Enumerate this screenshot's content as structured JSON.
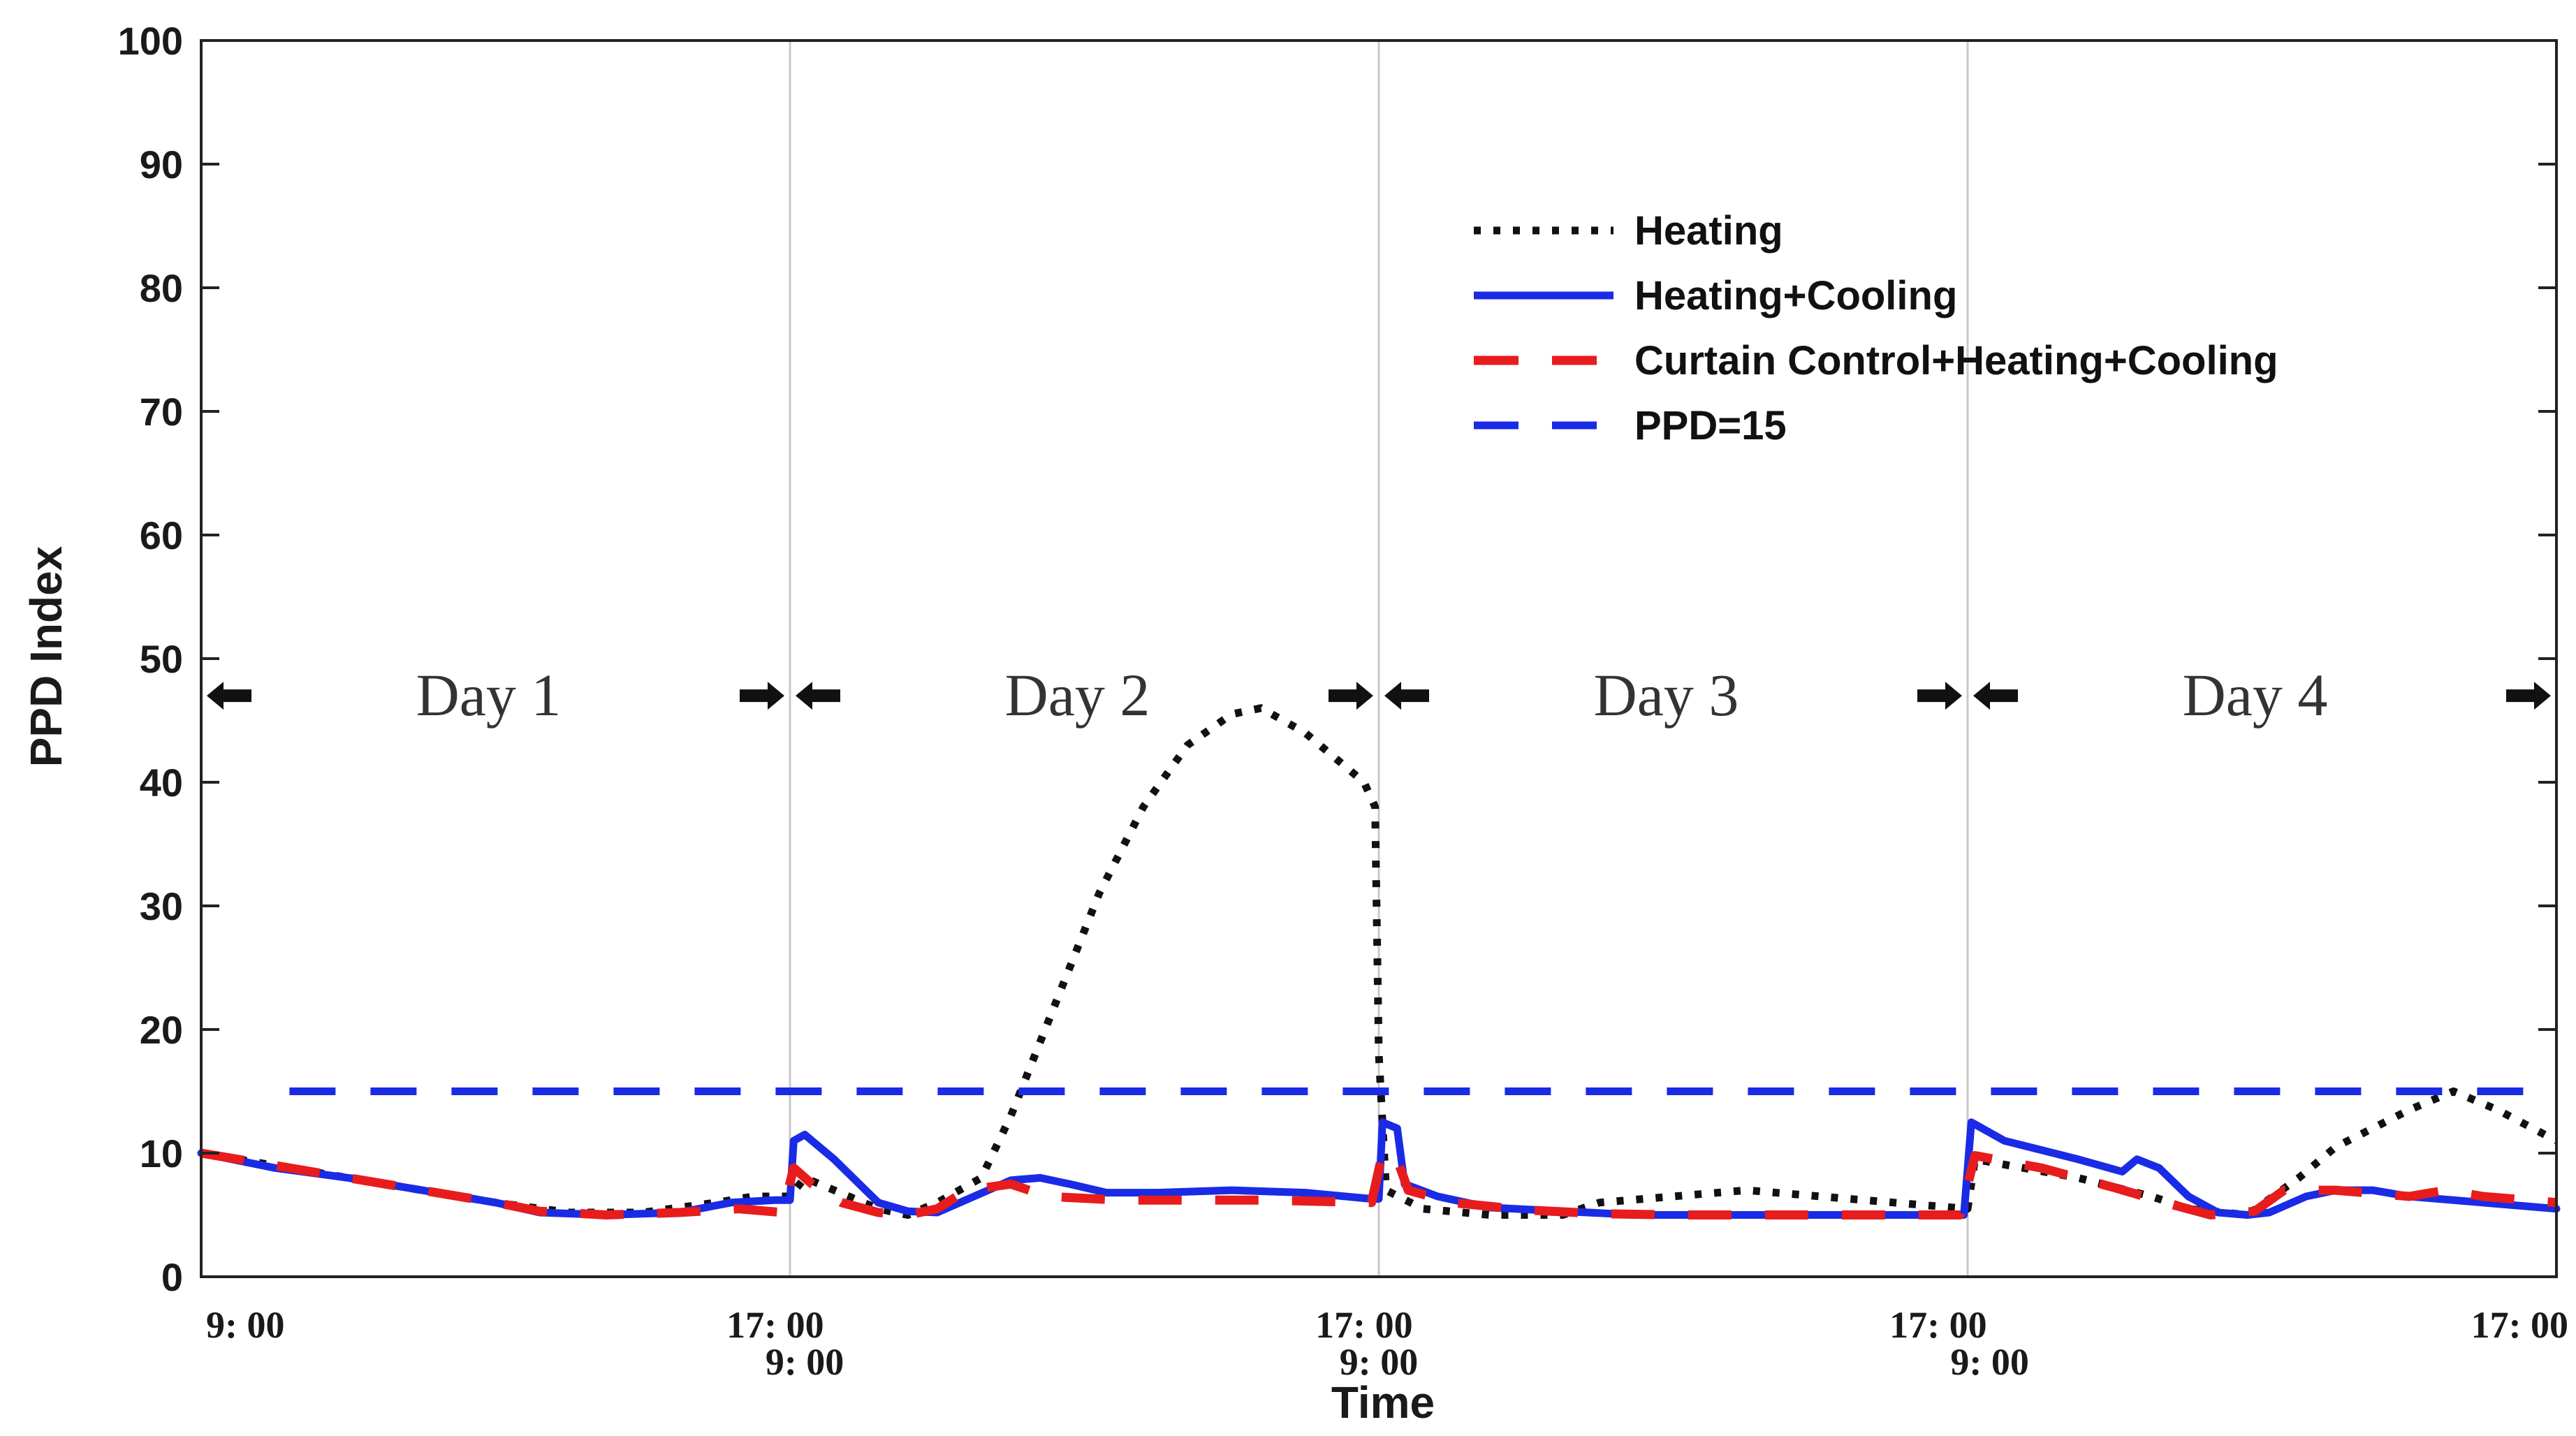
{
  "chart_data": {
    "type": "line",
    "title": "",
    "xlabel": "Time",
    "ylabel": "PPD Index",
    "ylim": [
      0,
      100
    ],
    "xlim": [
      0,
      32
    ],
    "grid": false,
    "legend_position": "top-right",
    "yticks": [
      0,
      10,
      20,
      30,
      40,
      50,
      60,
      70,
      80,
      90,
      100
    ],
    "x_tick_labels": [
      {
        "x": 0.6,
        "row": 1,
        "label": "9: 00"
      },
      {
        "x": 7.8,
        "row": 1,
        "label": "17: 00"
      },
      {
        "x": 8.2,
        "row": 2,
        "label": "9: 00"
      },
      {
        "x": 15.8,
        "row": 1,
        "label": "17: 00"
      },
      {
        "x": 16.0,
        "row": 2,
        "label": "9: 00"
      },
      {
        "x": 23.6,
        "row": 1,
        "label": "17: 00"
      },
      {
        "x": 24.3,
        "row": 2,
        "label": "9: 00"
      },
      {
        "x": 31.5,
        "row": 1,
        "label": "17: 00"
      }
    ],
    "day_separators": [
      8,
      16,
      24
    ],
    "days": [
      {
        "label": "Day 1",
        "start": 0,
        "end": 8
      },
      {
        "label": "Day 2",
        "start": 8,
        "end": 16
      },
      {
        "label": "Day 3",
        "start": 16,
        "end": 24
      },
      {
        "label": "Day 4",
        "start": 24,
        "end": 32
      }
    ],
    "day_marker_y": 47,
    "day_label_y": 47,
    "series": [
      {
        "name": "Heating",
        "color": "#111111",
        "style": "dotted",
        "points": [
          [
            0,
            10
          ],
          [
            1,
            9
          ],
          [
            2,
            8
          ],
          [
            3,
            7
          ],
          [
            4,
            6
          ],
          [
            5,
            5.2
          ],
          [
            6,
            5.2
          ],
          [
            7,
            6
          ],
          [
            7.5,
            6.5
          ],
          [
            8,
            6.5
          ],
          [
            8.2,
            8
          ],
          [
            8.6,
            7
          ],
          [
            9.2,
            5.5
          ],
          [
            9.6,
            5.0
          ],
          [
            10,
            6
          ],
          [
            10.6,
            8
          ],
          [
            11,
            13
          ],
          [
            11.6,
            22
          ],
          [
            12.2,
            31
          ],
          [
            12.8,
            38
          ],
          [
            13.4,
            43
          ],
          [
            14,
            45.5
          ],
          [
            14.4,
            46
          ],
          [
            15,
            44
          ],
          [
            15.8,
            40
          ],
          [
            15.95,
            38
          ],
          [
            16.0,
            18
          ],
          [
            16.1,
            7
          ],
          [
            16.6,
            5.5
          ],
          [
            17.5,
            5.0
          ],
          [
            18.5,
            5.0
          ],
          [
            19,
            6
          ],
          [
            20,
            6.5
          ],
          [
            21,
            7
          ],
          [
            22,
            6.5
          ],
          [
            23,
            6
          ],
          [
            24,
            5.5
          ],
          [
            24.1,
            9.5
          ],
          [
            25.5,
            8
          ],
          [
            26.5,
            6.5
          ],
          [
            27,
            5.5
          ],
          [
            27.8,
            5.0
          ],
          [
            28.5,
            8
          ],
          [
            29,
            10.5
          ],
          [
            30,
            13.5
          ],
          [
            30.6,
            15
          ],
          [
            31.2,
            13.5
          ],
          [
            32,
            11
          ]
        ]
      },
      {
        "name": "Heating+Cooling",
        "color": "#1a2be6",
        "style": "solid",
        "points": [
          [
            0,
            10
          ],
          [
            1,
            8.8
          ],
          [
            2,
            8
          ],
          [
            3,
            7
          ],
          [
            4,
            6
          ],
          [
            4.6,
            5.2
          ],
          [
            5.5,
            5.0
          ],
          [
            6.5,
            5.2
          ],
          [
            7.2,
            6
          ],
          [
            7.8,
            6.2
          ],
          [
            8.0,
            6.2
          ],
          [
            8.05,
            11
          ],
          [
            8.2,
            11.5
          ],
          [
            8.6,
            9.5
          ],
          [
            9.2,
            6
          ],
          [
            9.6,
            5.3
          ],
          [
            10.0,
            5.2
          ],
          [
            10.5,
            6.5
          ],
          [
            11,
            7.8
          ],
          [
            11.4,
            8
          ],
          [
            11.8,
            7.5
          ],
          [
            12.3,
            6.8
          ],
          [
            13,
            6.8
          ],
          [
            14,
            7
          ],
          [
            15,
            6.8
          ],
          [
            15.9,
            6.3
          ],
          [
            16.0,
            6.3
          ],
          [
            16.05,
            12.5
          ],
          [
            16.25,
            12
          ],
          [
            16.35,
            7.5
          ],
          [
            16.8,
            6.5
          ],
          [
            17.5,
            5.6
          ],
          [
            18.5,
            5.3
          ],
          [
            19.5,
            5.0
          ],
          [
            21,
            5.0
          ],
          [
            23,
            5.0
          ],
          [
            23.95,
            5.0
          ],
          [
            24.05,
            12.5
          ],
          [
            24.5,
            11
          ],
          [
            25.5,
            9.5
          ],
          [
            26.1,
            8.5
          ],
          [
            26.3,
            9.5
          ],
          [
            26.6,
            8.8
          ],
          [
            27.0,
            6.5
          ],
          [
            27.4,
            5.2
          ],
          [
            27.8,
            5.0
          ],
          [
            28.1,
            5.2
          ],
          [
            28.6,
            6.5
          ],
          [
            29,
            7
          ],
          [
            29.5,
            7
          ],
          [
            30,
            6.5
          ],
          [
            31,
            6
          ],
          [
            32,
            5.5
          ]
        ]
      },
      {
        "name": "Curtain Control+Heating+Cooling",
        "color": "#e81c1c",
        "style": "dashed",
        "points": [
          [
            0,
            10
          ],
          [
            1,
            9
          ],
          [
            2,
            8
          ],
          [
            3,
            7
          ],
          [
            4,
            6
          ],
          [
            4.6,
            5.3
          ],
          [
            5.5,
            5.0
          ],
          [
            6.5,
            5.2
          ],
          [
            7.3,
            5.5
          ],
          [
            7.9,
            5.2
          ],
          [
            8.05,
            8.8
          ],
          [
            8.3,
            7.5
          ],
          [
            8.7,
            6
          ],
          [
            9.2,
            5.2
          ],
          [
            9.6,
            5.0
          ],
          [
            10.0,
            5.5
          ],
          [
            10.4,
            7
          ],
          [
            11,
            7.5
          ],
          [
            11.5,
            6.5
          ],
          [
            12.5,
            6.2
          ],
          [
            13.5,
            6.2
          ],
          [
            14.5,
            6.2
          ],
          [
            15.9,
            6.0
          ],
          [
            16.05,
            10
          ],
          [
            16.25,
            9.5
          ],
          [
            16.4,
            7
          ],
          [
            17,
            6
          ],
          [
            18,
            5.4
          ],
          [
            19,
            5.1
          ],
          [
            20,
            5.0
          ],
          [
            22,
            5.0
          ],
          [
            23.9,
            5.0
          ],
          [
            24.1,
            9.8
          ],
          [
            25,
            8.8
          ],
          [
            26,
            7.2
          ],
          [
            26.8,
            5.8
          ],
          [
            27.3,
            5.0
          ],
          [
            27.9,
            5.3
          ],
          [
            28.3,
            7
          ],
          [
            29,
            7
          ],
          [
            30,
            6.5
          ],
          [
            30.5,
            7
          ],
          [
            31,
            6.5
          ],
          [
            32,
            6
          ]
        ]
      },
      {
        "name": "PPD=15",
        "color": "#1a2be6",
        "style": "long-dashed",
        "points": [
          [
            1.2,
            15
          ],
          [
            31.8,
            15
          ]
        ]
      }
    ]
  }
}
